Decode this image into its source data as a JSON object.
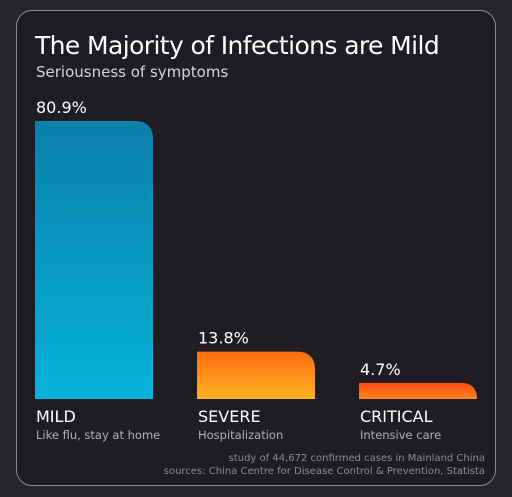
{
  "title": "The Majority of Infections are Mild",
  "subtitle": "Seriousness of symptoms",
  "footnotes": [
    "study of 44,672 confirmed cases in Mainland China",
    "sources: China Centre for Disease Control & Prevention, Statista"
  ],
  "colors": {
    "mild_top": "#0a7fa9",
    "mild_bottom": "#06b3da",
    "severe_top": "#ff6d12",
    "severe_bottom": "#ffb21f",
    "critical_top": "#ff4c12",
    "critical_bottom": "#ff8520"
  },
  "chart_data": {
    "type": "bar",
    "title": "The Majority of Infections are Mild",
    "subtitle": "Seriousness of symptoms",
    "categories": [
      "MILD",
      "SEVERE",
      "CRITICAL"
    ],
    "descriptions": [
      "Like flu, stay at home",
      "Hospitalization",
      "Intensive care"
    ],
    "values": [
      80.9,
      13.8,
      4.7
    ],
    "value_labels": [
      "80.9%",
      "13.8%",
      "4.7%"
    ],
    "unit": "%",
    "ylim": [
      0,
      80.9
    ],
    "grid": false,
    "legend": "none"
  }
}
